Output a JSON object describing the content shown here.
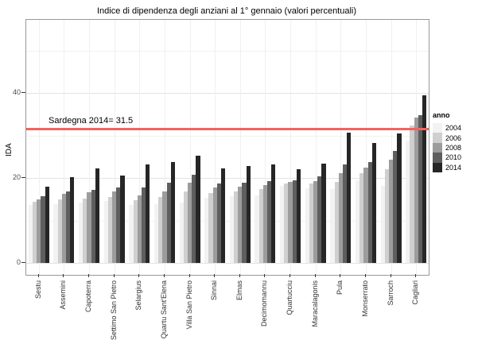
{
  "chart_data": {
    "type": "bar",
    "title": "Indice di dipendenza degli anziani al 1° gennaio (valori percentuali)",
    "ylabel": "IDA",
    "xlabel": "",
    "legend_title": "anno",
    "legend_position": "right",
    "grid": true,
    "ylim": [
      -2.8,
      57.2
    ],
    "y_ticks": [
      0,
      20,
      40
    ],
    "y_minor": [
      10,
      30,
      50
    ],
    "categories": [
      "Sestu",
      "Assemini",
      "Capoterra",
      "Settimo San Pietro",
      "Selargius",
      "Quartu Sant'Elena",
      "Villa San Pietro",
      "Sinnai",
      "Elmas",
      "Decimomannu",
      "Quartucciu",
      "Maracalagonis",
      "Pula",
      "Monserrato",
      "Sarroch",
      "Cagliari"
    ],
    "series": [
      {
        "name": "2004",
        "color": "#F2F2F2",
        "values": [
          13.7,
          13.8,
          14.2,
          14.6,
          13.6,
          13.9,
          14.2,
          15.3,
          15.7,
          15.9,
          18.2,
          17.6,
          17.4,
          19.4,
          18.2,
          28.8
        ]
      },
      {
        "name": "2006",
        "color": "#CFCFCF",
        "values": [
          14.4,
          15.0,
          15.2,
          15.6,
          14.7,
          15.5,
          16.9,
          16.5,
          16.9,
          17.4,
          18.7,
          18.7,
          19.0,
          21.2,
          22.0,
          32.4
        ]
      },
      {
        "name": "2008",
        "color": "#9C9C9C",
        "values": [
          15.0,
          16.3,
          16.7,
          16.9,
          15.8,
          16.9,
          18.8,
          17.8,
          17.9,
          18.4,
          19.0,
          19.3,
          21.1,
          22.4,
          24.3,
          34.2
        ]
      },
      {
        "name": "2010",
        "color": "#5E5E5E",
        "values": [
          15.7,
          16.9,
          17.2,
          17.8,
          17.8,
          18.8,
          20.7,
          18.7,
          18.8,
          19.2,
          19.5,
          20.4,
          23.1,
          23.7,
          26.3,
          34.8
        ]
      },
      {
        "name": "2014",
        "color": "#262626",
        "values": [
          17.9,
          20.2,
          22.2,
          20.5,
          23.2,
          23.7,
          25.2,
          22.3,
          22.9,
          23.1,
          22.1,
          23.3,
          30.6,
          28.3,
          30.4,
          39.4
        ]
      }
    ],
    "reference_line": {
      "value": 31.5,
      "label": "Sardegna 2014= 31.5",
      "color": "#F4625C"
    }
  }
}
